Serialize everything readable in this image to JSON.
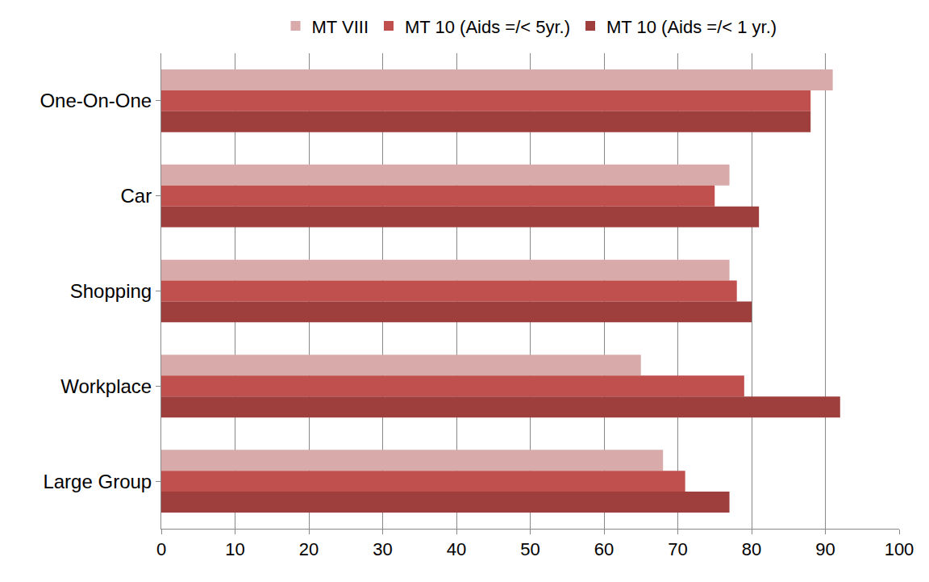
{
  "chart_data": {
    "type": "bar",
    "orientation": "horizontal",
    "categories": [
      "One-On-One",
      "Car",
      "Shopping",
      "Workplace",
      "Large Group"
    ],
    "series": [
      {
        "name": "MT VIII",
        "color": "#d9aaaa",
        "values": [
          91,
          77,
          77,
          65,
          68
        ]
      },
      {
        "name": "MT 10 (Aids =/< 5yr.)",
        "color": "#c0504d",
        "values": [
          88,
          75,
          78,
          79,
          71
        ]
      },
      {
        "name": "MT 10 (Aids =/< 1 yr.)",
        "color": "#9e3f3d",
        "values": [
          88,
          81,
          80,
          92,
          77
        ]
      }
    ],
    "xlim": [
      0,
      100
    ],
    "xticks": [
      0,
      10,
      20,
      30,
      40,
      50,
      60,
      70,
      80,
      90,
      100
    ],
    "grid": true,
    "legend": "top"
  }
}
